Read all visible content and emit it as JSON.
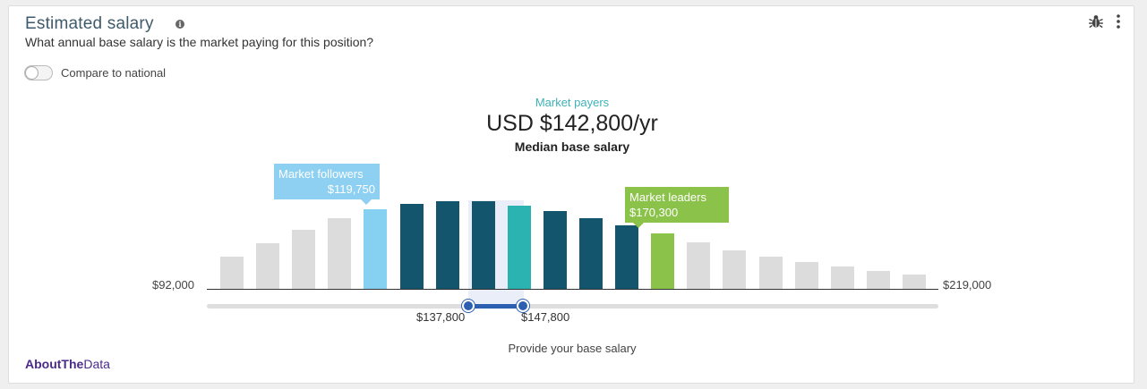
{
  "widget": {
    "title": "Estimated salary",
    "subtitle": "What annual base salary is the market paying for this position?",
    "info_icon": "info-icon",
    "actions": [
      "bug-icon",
      "more-vertical-icon"
    ]
  },
  "toggle": {
    "label": "Compare to national",
    "on": false
  },
  "summary": {
    "payers_label": "Market payers",
    "value": "USD $142,800/yr",
    "median_label": "Median base salary"
  },
  "callouts": {
    "followers": {
      "label": "Market followers",
      "value": "$119,750",
      "color": "#8ed0f2"
    },
    "leaders": {
      "label": "Market leaders",
      "value": "$170,300",
      "color": "#8bc24a"
    }
  },
  "chart_data": {
    "type": "bar",
    "xlim_labels": [
      "$92,000",
      "$219,000"
    ],
    "values": [
      36,
      51,
      66,
      79,
      89,
      95,
      98,
      98,
      93,
      87,
      79,
      71,
      62,
      52,
      43,
      36,
      30,
      25,
      20,
      16
    ],
    "colors": [
      "#dcdcdc",
      "#dcdcdc",
      "#dcdcdc",
      "#dcdcdc",
      "#86d0f2",
      "#13556c",
      "#13556c",
      "#13556c",
      "#2bb3b1",
      "#13556c",
      "#13556c",
      "#13556c",
      "#8bc24a",
      "#dcdcdc",
      "#dcdcdc",
      "#dcdcdc",
      "#dcdcdc",
      "#dcdcdc",
      "#dcdcdc",
      "#dcdcdc"
    ]
  },
  "slider": {
    "low_label": "$137,800",
    "high_label": "$147,800",
    "accent": "#2d5fb0"
  },
  "footer": {
    "prompt": "Provide your base salary",
    "brand_bold": "AboutThe",
    "brand_light": "Data"
  }
}
